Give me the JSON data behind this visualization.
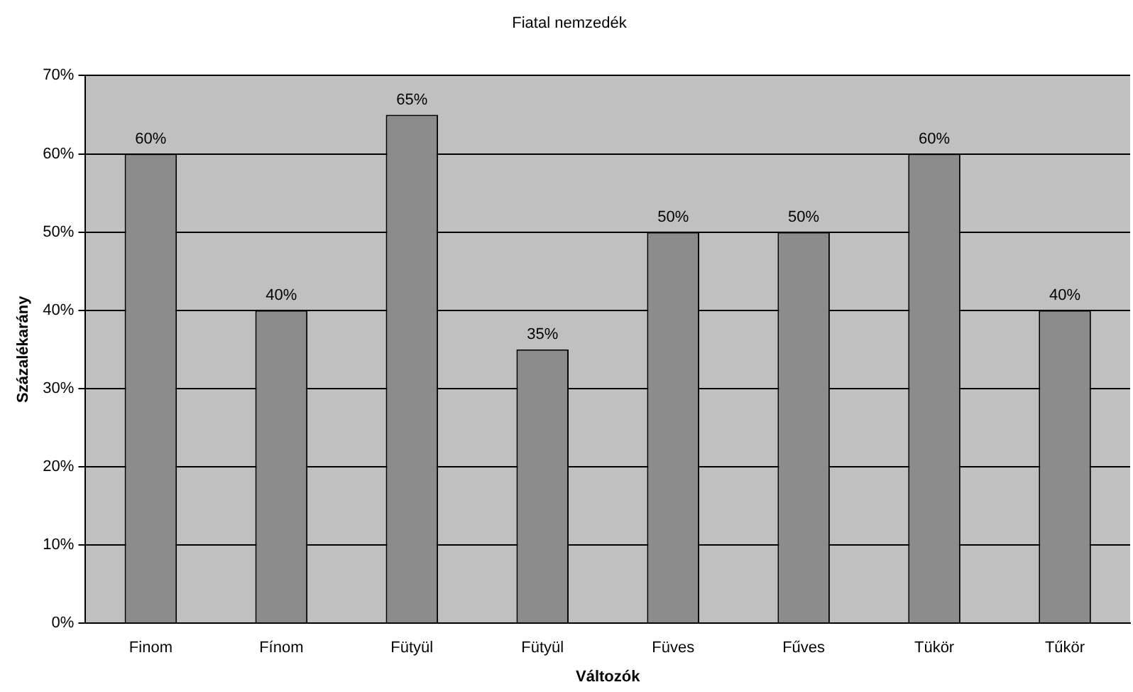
{
  "chart_data": {
    "type": "bar",
    "title": "Fiatal nemzedék",
    "xlabel": "Változók",
    "ylabel": "Százalékarány",
    "categories": [
      "Finom",
      "Fínom",
      "Fütyül",
      "Fütyül",
      "Füves",
      "Fűves",
      "Tükör",
      "Tűkör"
    ],
    "values": [
      60,
      40,
      65,
      35,
      50,
      50,
      60,
      40
    ],
    "color": "#8c8c8c",
    "value_labels": [
      "60%",
      "40%",
      "65%",
      "35%",
      "50%",
      "50%",
      "60%",
      "40%"
    ],
    "ylim": [
      0,
      70
    ],
    "yticks": [
      {
        "value": 0,
        "label": "0%"
      },
      {
        "value": 10,
        "label": "10%"
      },
      {
        "value": 20,
        "label": "20%"
      },
      {
        "value": 30,
        "label": "30%"
      },
      {
        "value": 40,
        "label": "40%"
      },
      {
        "value": 50,
        "label": "50%"
      },
      {
        "value": 60,
        "label": "60%"
      },
      {
        "value": 70,
        "label": "70%"
      }
    ],
    "grid": "y",
    "legend": false
  }
}
